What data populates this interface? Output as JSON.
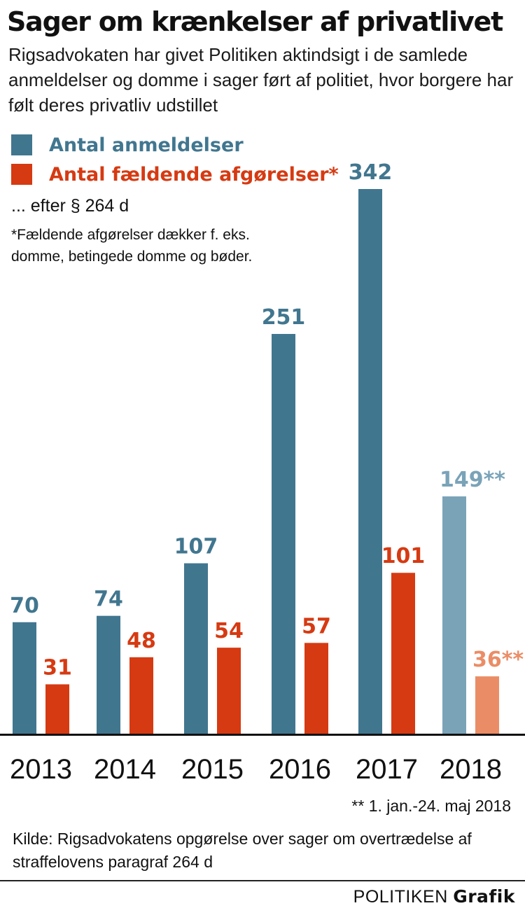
{
  "title": "Sager om krænkelser af privatlivet",
  "subtitle": "Rigsadvokaten har givet Politiken aktindsigt i de samlede anmeldelser og domme i sager ført af politiet, hvor borgere har følt deres privatliv udstillet",
  "legend": [
    {
      "label": "Antal anmeldelser",
      "color": "#41768f"
    },
    {
      "label": "Antal fældende afgørelser*",
      "color": "#d63a12"
    }
  ],
  "note_law": "... efter § 264 d",
  "note_asterisk": "*Fældende afgørelser dækker f. eks. domme, betingede domme og bøder.",
  "footnote": "** 1. jan.-24. maj 2018",
  "source": "Kilde: Rigsadvokatens opgørelse over sager om overtrædelse af straffelovens paragraf 264 d",
  "brand": {
    "part1": "POLITIKEN",
    "part2": "Grafik"
  },
  "chart_data": {
    "type": "bar",
    "categories": [
      "2013",
      "2014",
      "2015",
      "2016",
      "2017",
      "2018"
    ],
    "series": [
      {
        "name": "Antal anmeldelser",
        "values": [
          70,
          74,
          107,
          251,
          342,
          149
        ],
        "labels": [
          "70",
          "74",
          "107",
          "251",
          "342",
          "149**"
        ],
        "color": "#41768f",
        "highlight_last_color": "#7aa3b8"
      },
      {
        "name": "Antal fældende afgørelser*",
        "values": [
          31,
          48,
          54,
          57,
          101,
          36
        ],
        "labels": [
          "31",
          "48",
          "54",
          "57",
          "101",
          "36**"
        ],
        "color": "#d63a12",
        "highlight_last_color": "#ea8d66"
      }
    ],
    "ylim": [
      0,
      342
    ],
    "grid": false,
    "legend_position": "top-left"
  }
}
